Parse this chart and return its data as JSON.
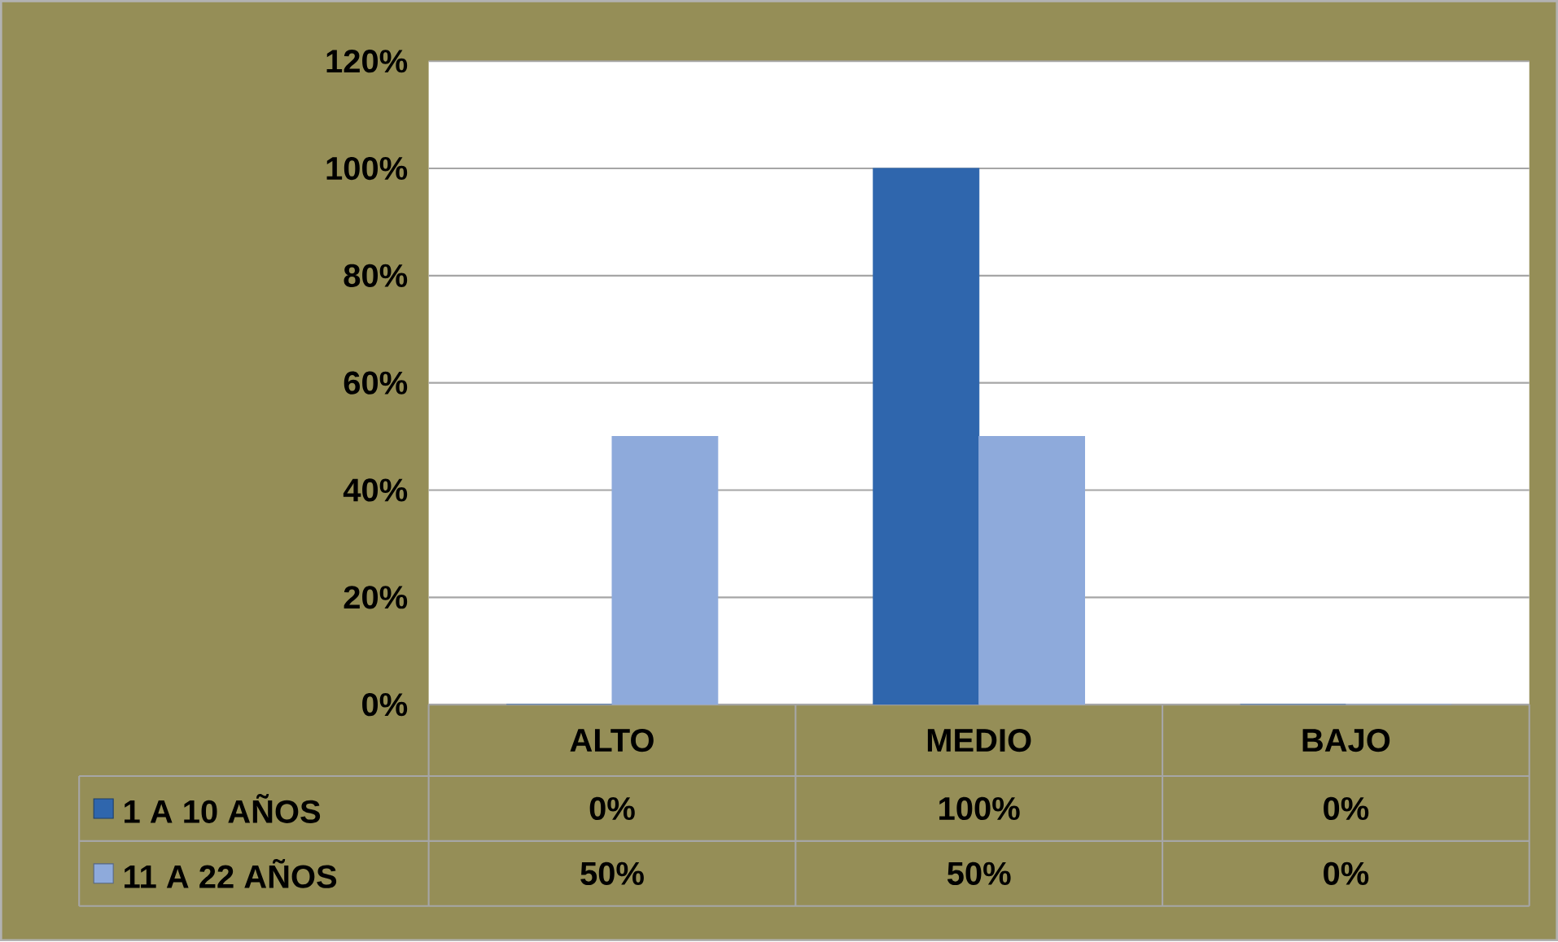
{
  "chart_data": {
    "type": "bar",
    "categories": [
      "ALTO",
      "MEDIO",
      "BAJO"
    ],
    "series": [
      {
        "name": "1 A 10 AÑOS",
        "color": "#2f66ad",
        "values": [
          0,
          100,
          0
        ],
        "value_labels": [
          "0%",
          "100%",
          "0%"
        ]
      },
      {
        "name": "11 A 22 AÑOS",
        "color": "#8eaadb",
        "values": [
          50,
          50,
          0
        ],
        "value_labels": [
          "50%",
          "50%",
          "0%"
        ]
      }
    ],
    "ylim": [
      0,
      120
    ],
    "yticks": [
      {
        "value": 0,
        "label": "0%"
      },
      {
        "value": 20,
        "label": "20%"
      },
      {
        "value": 40,
        "label": "40%"
      },
      {
        "value": 60,
        "label": "60%"
      },
      {
        "value": 80,
        "label": "80%"
      },
      {
        "value": 100,
        "label": "100%"
      },
      {
        "value": 120,
        "label": "120%"
      }
    ],
    "grid": "y",
    "legend": "bottom"
  }
}
